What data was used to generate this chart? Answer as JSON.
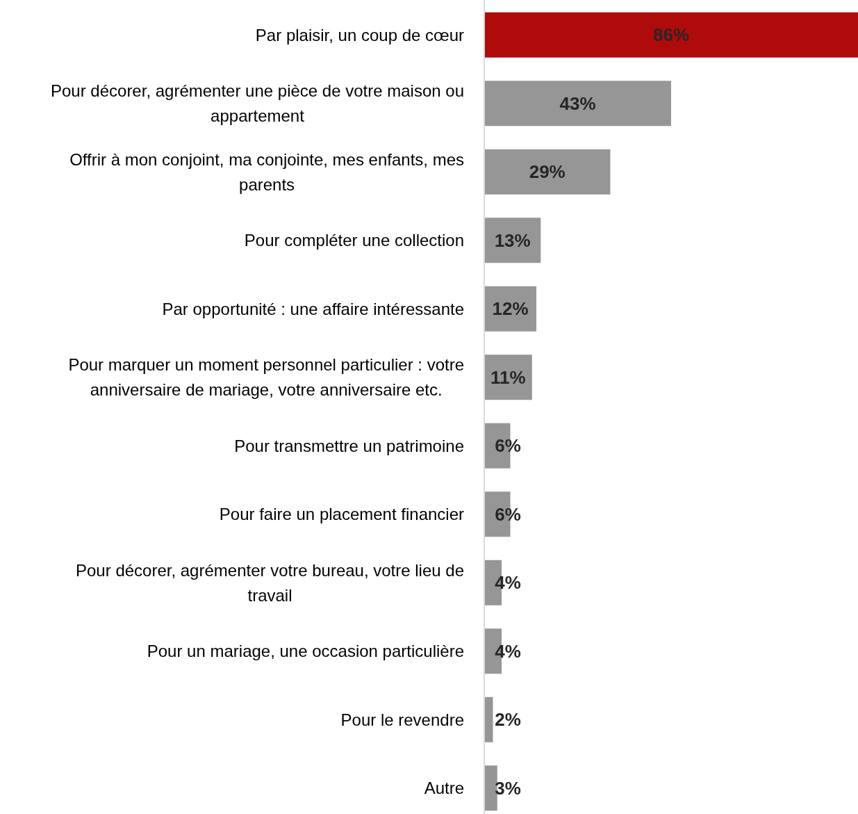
{
  "chart_data": {
    "type": "bar",
    "orientation": "horizontal",
    "categories": [
      "Par plaisir, un coup de cœur",
      "Pour décorer, agrémenter une pièce de votre maison ou appartement",
      "Offrir à mon conjoint, ma conjointe, mes enfants, mes parents",
      "Pour compléter une collection",
      "Par opportunité : une affaire intéressante",
      "Pour marquer un moment personnel particulier : votre anniversaire de mariage, votre anniversaire etc.",
      "Pour transmettre un patrimoine",
      "Pour faire un placement financier",
      "Pour décorer, agrémenter votre bureau, votre lieu de travail",
      "Pour un mariage, une occasion particulière",
      "Pour le revendre",
      "Autre"
    ],
    "values": [
      86,
      43,
      29,
      13,
      12,
      11,
      6,
      6,
      4,
      4,
      2,
      3
    ],
    "colors": [
      "#b00b0b",
      "#969696",
      "#969696",
      "#969696",
      "#969696",
      "#969696",
      "#969696",
      "#969696",
      "#969696",
      "#969696",
      "#969696",
      "#969696"
    ],
    "value_labels": [
      "86%",
      "43%",
      "29%",
      "13%",
      "12%",
      "11%",
      "6%",
      "6%",
      "4%",
      "4%",
      "2%",
      "3%"
    ]
  }
}
